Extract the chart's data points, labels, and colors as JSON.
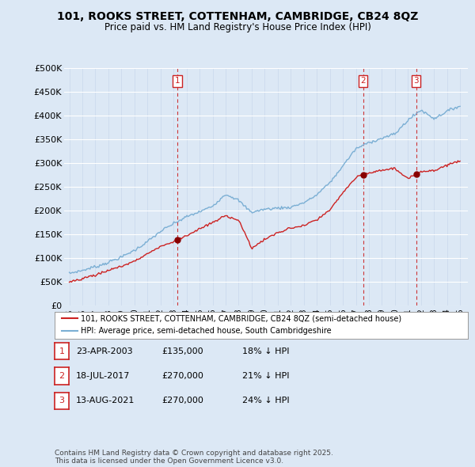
{
  "title": "101, ROOKS STREET, COTTENHAM, CAMBRIDGE, CB24 8QZ",
  "subtitle": "Price paid vs. HM Land Registry's House Price Index (HPI)",
  "hpi_color": "#7bafd4",
  "price_color": "#cc2222",
  "vline_color": "#cc2222",
  "bg_color": "#dce8f5",
  "transactions": [
    {
      "num": 1,
      "date_str": "23-APR-2003",
      "year": 2003.3,
      "price": 135000,
      "pct": "18% ↓ HPI"
    },
    {
      "num": 2,
      "date_str": "18-JUL-2017",
      "year": 2017.55,
      "price": 270000,
      "pct": "21% ↓ HPI"
    },
    {
      "num": 3,
      "date_str": "13-AUG-2021",
      "year": 2021.62,
      "price": 270000,
      "pct": "24% ↓ HPI"
    }
  ],
  "legend_entries": [
    "101, ROOKS STREET, COTTENHAM, CAMBRIDGE, CB24 8QZ (semi-detached house)",
    "HPI: Average price, semi-detached house, South Cambridgeshire"
  ],
  "footer": "Contains HM Land Registry data © Crown copyright and database right 2025.\nThis data is licensed under the Open Government Licence v3.0.",
  "xmin": 1994.6,
  "xmax": 2025.6,
  "ylim": [
    0,
    500000
  ],
  "ytick_vals": [
    0,
    50000,
    100000,
    150000,
    200000,
    250000,
    300000,
    350000,
    400000,
    450000,
    500000
  ],
  "ytick_labels": [
    "£0",
    "£50K",
    "£100K",
    "£150K",
    "£200K",
    "£250K",
    "£300K",
    "£350K",
    "£400K",
    "£450K",
    "£500K"
  ]
}
